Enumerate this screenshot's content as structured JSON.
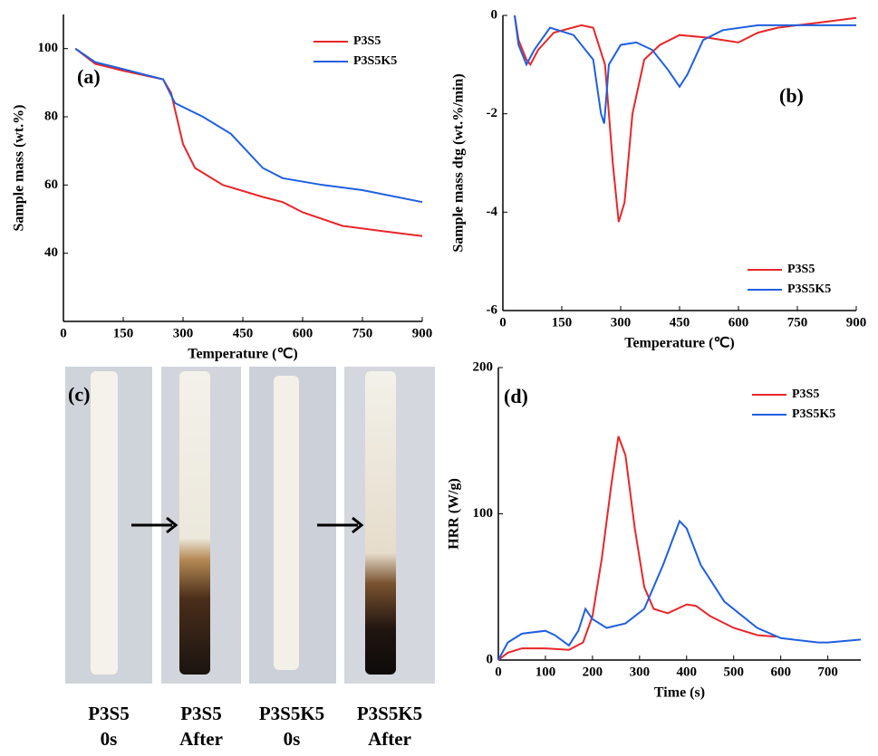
{
  "chart_data": [
    {
      "type": "line",
      "annotation": "(a)",
      "x_label": "Temperature (℃)",
      "y_label": "Sample mass (wt.%)",
      "legend": "top-right",
      "xlim": [
        0,
        900
      ],
      "xticks": [
        0,
        150,
        300,
        450,
        600,
        750,
        900
      ],
      "ylim": [
        20,
        110
      ],
      "yticks": [
        40,
        60,
        80,
        100
      ],
      "series": [
        {
          "name": "P3S5",
          "color": "#e8262a",
          "x": [
            30,
            80,
            150,
            250,
            270,
            300,
            330,
            400,
            500,
            550,
            600,
            700,
            800,
            900
          ],
          "values": [
            100,
            95.5,
            93.5,
            91,
            87,
            72,
            65,
            60,
            56.5,
            55,
            52,
            48,
            46.5,
            45
          ]
        },
        {
          "name": "P3S5K5",
          "color": "#1f5fe0",
          "x": [
            30,
            80,
            150,
            250,
            280,
            350,
            420,
            500,
            550,
            650,
            750,
            900
          ],
          "values": [
            100,
            96,
            94,
            91,
            84,
            80,
            75,
            65,
            62,
            60,
            58.5,
            55
          ]
        }
      ]
    },
    {
      "type": "line",
      "annotation": "(b)",
      "x_label": "Temperature (℃)",
      "y_label": "Sample mass dtg (wt.%/min)",
      "legend": "bottom-right",
      "xlim": [
        0,
        900
      ],
      "xticks": [
        0,
        150,
        300,
        450,
        600,
        750,
        900
      ],
      "ylim": [
        -6,
        0
      ],
      "yticks": [
        -6,
        -4,
        -2,
        0
      ],
      "series": [
        {
          "name": "P3S5",
          "color": "#e8262a",
          "x": [
            30,
            40,
            60,
            70,
            90,
            130,
            200,
            230,
            260,
            280,
            295,
            310,
            330,
            360,
            400,
            450,
            520,
            560,
            600,
            650,
            700,
            800,
            900
          ],
          "values": [
            0,
            -0.5,
            -0.9,
            -1.0,
            -0.7,
            -0.35,
            -0.2,
            -0.25,
            -1,
            -3,
            -4.2,
            -3.8,
            -2,
            -0.9,
            -0.6,
            -0.4,
            -0.45,
            -0.5,
            -0.55,
            -0.35,
            -0.25,
            -0.15,
            -0.05
          ]
        },
        {
          "name": "P3S5K5",
          "color": "#1f5fe0",
          "x": [
            30,
            40,
            60,
            80,
            120,
            180,
            230,
            250,
            258,
            270,
            300,
            340,
            380,
            420,
            450,
            470,
            510,
            560,
            650,
            750,
            900
          ],
          "values": [
            0,
            -0.6,
            -1.0,
            -0.7,
            -0.25,
            -0.4,
            -0.9,
            -2,
            -2.2,
            -1,
            -0.6,
            -0.55,
            -0.7,
            -1.1,
            -1.45,
            -1.2,
            -0.5,
            -0.3,
            -0.2,
            -0.2,
            -0.2
          ]
        }
      ]
    },
    {
      "type": "line",
      "annotation": "(d)",
      "x_label": "Time (s)",
      "y_label": "HRR (W/g)",
      "legend": "top-right",
      "xlim": [
        0,
        770
      ],
      "xticks": [
        0,
        100,
        200,
        300,
        400,
        500,
        600,
        700
      ],
      "ylim": [
        0,
        200
      ],
      "yticks": [
        0,
        100,
        200
      ],
      "series": [
        {
          "name": "P3S5",
          "color": "#e8262a",
          "x": [
            0,
            20,
            50,
            100,
            150,
            180,
            200,
            220,
            240,
            255,
            270,
            290,
            310,
            330,
            360,
            400,
            420,
            450,
            500,
            550,
            590
          ],
          "values": [
            0,
            5,
            8,
            8,
            7,
            12,
            30,
            70,
            120,
            153,
            140,
            90,
            50,
            35,
            32,
            38,
            37,
            30,
            22,
            17,
            16
          ]
        },
        {
          "name": "P3S5K5",
          "color": "#1f5fe0",
          "x": [
            0,
            20,
            50,
            100,
            120,
            150,
            170,
            185,
            200,
            230,
            270,
            310,
            350,
            385,
            400,
            430,
            480,
            550,
            600,
            680,
            700,
            770
          ],
          "values": [
            0,
            12,
            18,
            20,
            17,
            10,
            20,
            35,
            28,
            22,
            25,
            35,
            65,
            95,
            90,
            65,
            40,
            22,
            15,
            12,
            12,
            14
          ]
        }
      ]
    }
  ],
  "photo_panel": {
    "label": "(c)",
    "captions": [
      [
        "P3S5",
        "0s"
      ],
      [
        "P3S5",
        "After"
      ],
      [
        "P3S5K5",
        "0s"
      ],
      [
        "P3S5K5",
        "After"
      ]
    ]
  }
}
